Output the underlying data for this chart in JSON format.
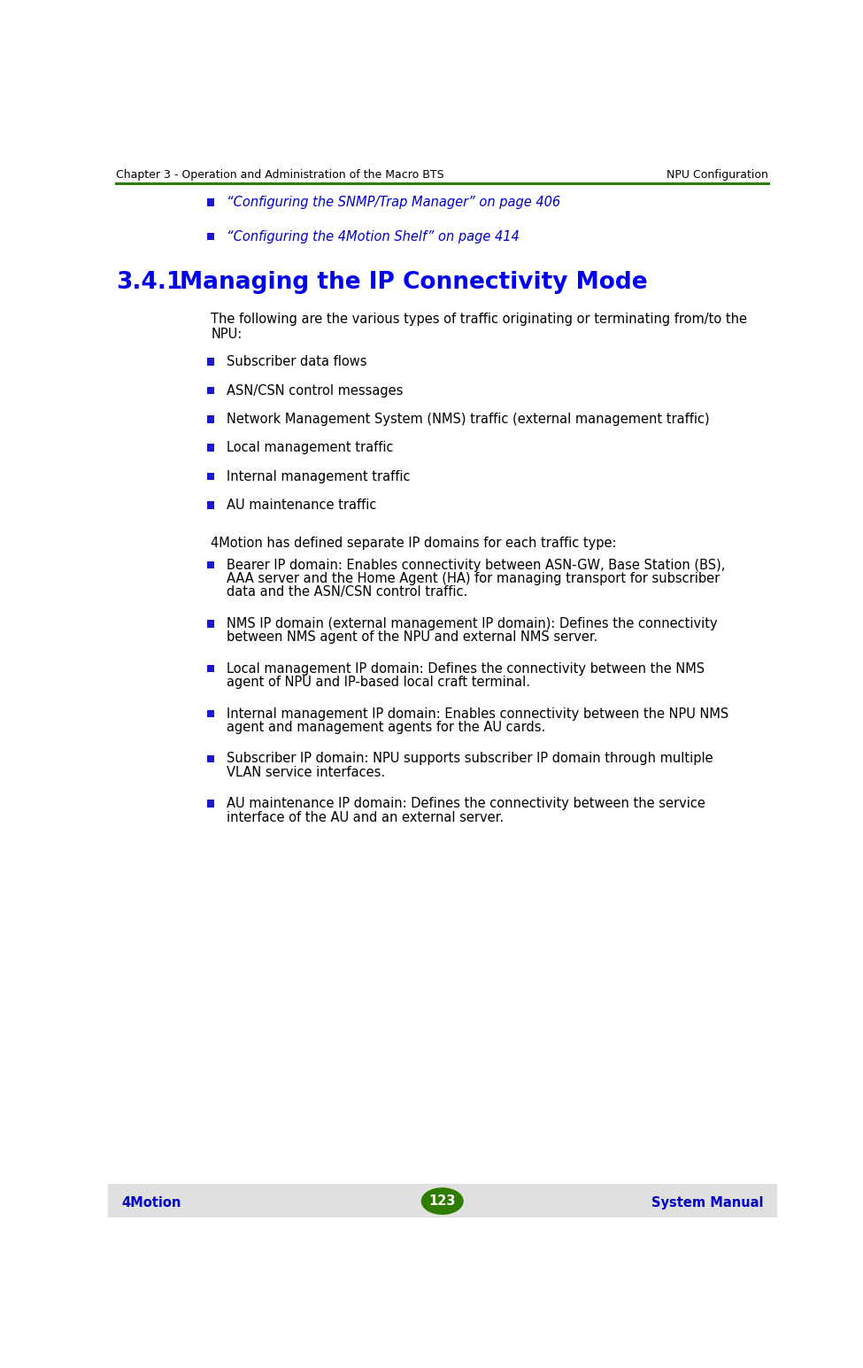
{
  "header_left": "Chapter 3 - Operation and Administration of the Macro BTS",
  "header_right": "NPU Configuration",
  "header_line_color": "#2e7d00",
  "header_text_color": "#000000",
  "footer_left": "4Motion",
  "footer_center": "123",
  "footer_right": "System Manual",
  "footer_text_color": "#0000cc",
  "footer_bg_color": "#e0e0e0",
  "footer_badge_color": "#2e7d00",
  "footer_badge_text_color": "#ffffff",
  "blue_link_color": "#0000cc",
  "section_title_color": "#0000ee",
  "body_text_color": "#000000",
  "bullet_color": "#1a1acc",
  "background_color": "#ffffff",
  "header_fontsize": 9.0,
  "footer_fontsize": 10.5,
  "section_num_fontsize": 19,
  "section_title_fontsize": 19,
  "body_fontsize": 10.5,
  "link_fontsize": 10.5,
  "bullet_item_fontsize": 10.5,
  "link_items": [
    "“Configuring the SNMP/Trap Manager” on page 406",
    "“Configuring the 4Motion Shelf” on page 414"
  ],
  "section_number": "3.4.1",
  "section_title": "Managing the IP Connectivity Mode",
  "intro_line1": "The following are the various types of traffic originating or terminating from/to the",
  "intro_line2": "NPU:",
  "bullet_items_simple": [
    "Subscriber data flows",
    "ASN/CSN control messages",
    "Network Management System (NMS) traffic (external management traffic)",
    "Local management traffic",
    "Internal management traffic",
    "AU maintenance traffic"
  ],
  "mid_text": "4Motion has defined separate IP domains for each traffic type:",
  "bullet_items_detailed": [
    [
      "Bearer IP domain: Enables connectivity between ASN-GW, Base Station (BS),",
      "AAA server and the Home Agent (HA) for managing transport for subscriber",
      "data and the ASN/CSN control traffic."
    ],
    [
      "NMS IP domain (external management IP domain): Defines the connectivity",
      "between NMS agent of the NPU and external NMS server."
    ],
    [
      "Local management IP domain: Defines the connectivity between the NMS",
      "agent of NPU and IP-based local craft terminal."
    ],
    [
      "Internal management IP domain: Enables connectivity between the NPU NMS",
      "agent and management agents for the AU cards."
    ],
    [
      "Subscriber IP domain: NPU supports subscriber IP domain through multiple",
      "VLAN service interfaces."
    ],
    [
      "AU maintenance IP domain: Defines the connectivity between the service",
      "interface of the AU and an external server."
    ]
  ]
}
